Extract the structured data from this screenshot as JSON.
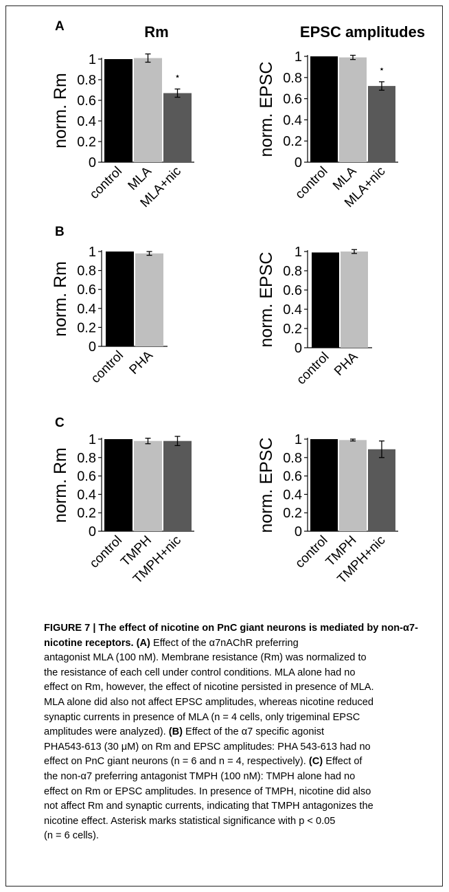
{
  "chart_data": [
    {
      "type": "bar",
      "panel": "A",
      "title": "Rm",
      "ylabel": "norm. Rm",
      "ylim": [
        0,
        1
      ],
      "yticks": [
        "0",
        "0.2",
        "0.4",
        "0.6",
        "0.8",
        "1"
      ],
      "categories": [
        "control",
        "MLA",
        "MLA+nic"
      ],
      "values": [
        1.0,
        1.01,
        0.67
      ],
      "errors": [
        0.0,
        0.04,
        0.04
      ],
      "colors": [
        "#000000",
        "#bfbfbf",
        "#595959"
      ],
      "significant": [
        false,
        false,
        true
      ]
    },
    {
      "type": "bar",
      "panel": "A",
      "title": "EPSC amplitudes",
      "ylabel": "norm. EPSC",
      "ylim": [
        0,
        1
      ],
      "yticks": [
        "0",
        "0.2",
        "0.4",
        "0.6",
        "0.8",
        "1"
      ],
      "categories": [
        "control",
        "MLA",
        "MLA+nic"
      ],
      "values": [
        1.0,
        0.99,
        0.72
      ],
      "errors": [
        0.0,
        0.02,
        0.04
      ],
      "colors": [
        "#000000",
        "#bfbfbf",
        "#595959"
      ],
      "significant": [
        false,
        false,
        true
      ]
    },
    {
      "type": "bar",
      "panel": "B",
      "title": "",
      "ylabel": "norm. Rm",
      "ylim": [
        0,
        1
      ],
      "yticks": [
        "0",
        "0.2",
        "0.4",
        "0.6",
        "0.8",
        "1"
      ],
      "categories": [
        "control",
        "PHA"
      ],
      "values": [
        1.0,
        0.98
      ],
      "errors": [
        0.0,
        0.02
      ],
      "colors": [
        "#000000",
        "#bfbfbf"
      ],
      "significant": [
        false,
        false
      ]
    },
    {
      "type": "bar",
      "panel": "B",
      "title": "",
      "ylabel": "norm. EPSC",
      "ylim": [
        0,
        1
      ],
      "yticks": [
        "0",
        "0.2",
        "0.4",
        "0.6",
        "0.8",
        "1"
      ],
      "categories": [
        "control",
        "PHA"
      ],
      "values": [
        0.99,
        1.0
      ],
      "errors": [
        0.0,
        0.02
      ],
      "colors": [
        "#000000",
        "#bfbfbf"
      ],
      "significant": [
        false,
        false
      ]
    },
    {
      "type": "bar",
      "panel": "C",
      "title": "",
      "ylabel": "norm. Rm",
      "ylim": [
        0,
        1
      ],
      "yticks": [
        "0",
        "0.2",
        "0.4",
        "0.6",
        "0.8",
        "1"
      ],
      "categories": [
        "control",
        "TMPH",
        "TMPH+nic"
      ],
      "values": [
        1.0,
        0.98,
        0.98
      ],
      "errors": [
        0.0,
        0.03,
        0.05
      ],
      "colors": [
        "#000000",
        "#bfbfbf",
        "#595959"
      ],
      "significant": [
        false,
        false,
        false
      ]
    },
    {
      "type": "bar",
      "panel": "C",
      "title": "",
      "ylabel": "norm. EPSC",
      "ylim": [
        0,
        1
      ],
      "yticks": [
        "0",
        "0.2",
        "0.4",
        "0.6",
        "0.8",
        "1"
      ],
      "categories": [
        "control",
        "TMPH",
        "TMPH+nic"
      ],
      "values": [
        1.0,
        0.99,
        0.89
      ],
      "errors": [
        0.0,
        0.01,
        0.09
      ],
      "colors": [
        "#000000",
        "#bfbfbf",
        "#595959"
      ],
      "significant": [
        false,
        false,
        false
      ]
    }
  ],
  "significance_marker": "⋆",
  "caption": {
    "title": "FIGURE 7 | The effect of nicotine on PnC giant neurons is mediated by non-α7-nicotine receptors.",
    "line1_label": "(A)",
    "line1_text": " Effect of the α7nAChR preferring",
    "line2": "antagonist MLA (100 nM). Membrane resistance (Rm) was normalized to",
    "line3": "the resistance of each cell under control conditions. MLA alone had no",
    "line4": "effect on Rm, however, the effect of nicotine persisted in presence of MLA.",
    "line5": "MLA alone did also not affect EPSC amplitudes, whereas nicotine reduced",
    "line6": "synaptic currents in presence of MLA (n = 4 cells, only trigeminal EPSC",
    "line7_text": "amplitudes were analyzed). ",
    "line7_label": "(B)",
    "line7_text2": " Effect of the α7 specific agonist",
    "line8": "PHA543-613 (30 μM) on Rm and EPSC amplitudes: PHA 543-613 had no",
    "line9": "effect on PnC giant neurons (n = 6 and n = 4, respectively). ",
    "line9_label": "(C)",
    "line9_text2": " Effect of",
    "line10": "the non-α7 preferring antagonist TMPH (100 nM): TMPH alone had no",
    "line11": "effect on Rm or EPSC amplitudes. In presence of TMPH, nicotine did also",
    "line12": "not affect Rm and synaptic currents, indicating that TMPH antagonizes the",
    "line13": "nicotine effect. Asterisk marks statistical significance with p < 0.05",
    "line14": "(n = 6 cells)."
  }
}
